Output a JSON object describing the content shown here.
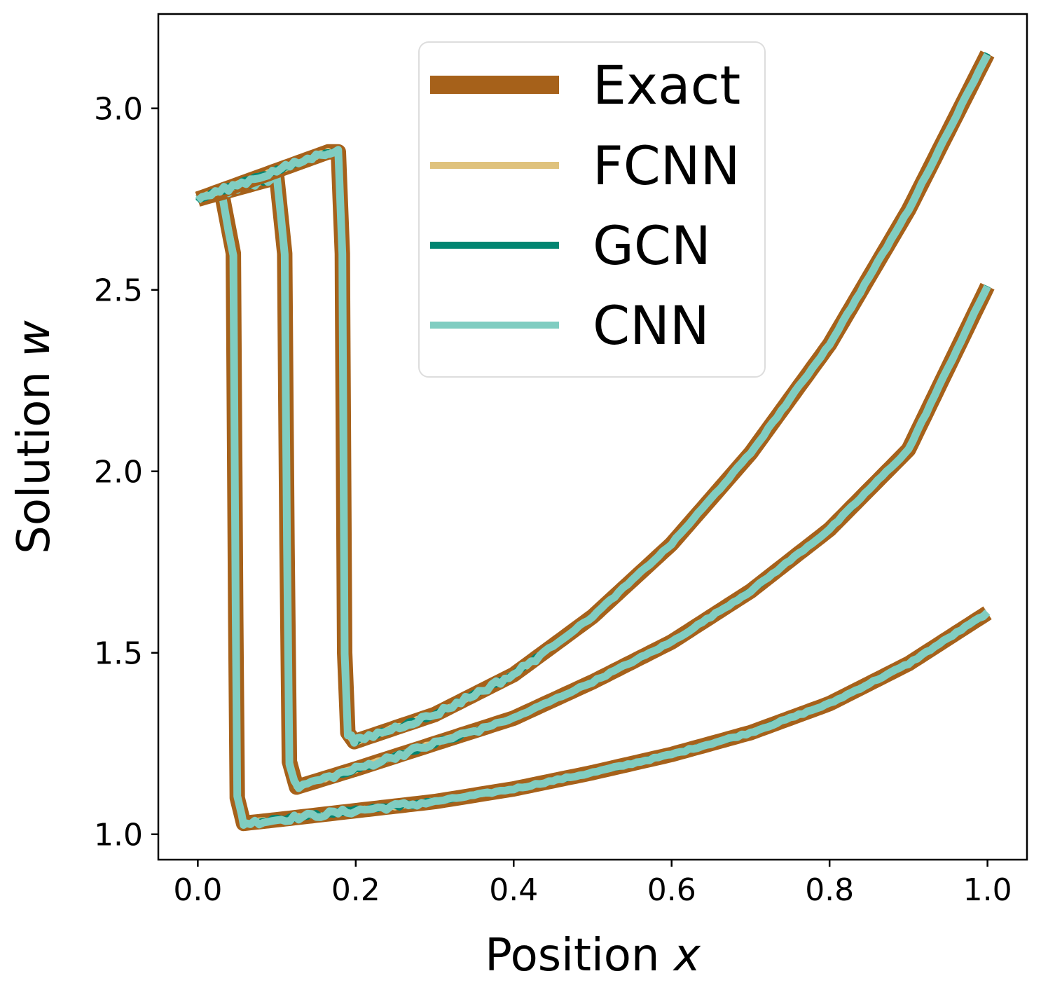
{
  "chart_data": {
    "type": "line",
    "xlabel": {
      "text": "Position ",
      "var": "x"
    },
    "ylabel": {
      "text": "Solution ",
      "var": "w"
    },
    "xlim": [
      -0.05,
      1.05
    ],
    "ylim": [
      0.93,
      3.26
    ],
    "xticks": [
      0.0,
      0.2,
      0.4,
      0.6,
      0.8,
      1.0
    ],
    "xtick_labels": [
      "0.0",
      "0.2",
      "0.4",
      "0.6",
      "0.8",
      "1.0"
    ],
    "yticks": [
      1.0,
      1.5,
      2.0,
      2.5,
      3.0
    ],
    "ytick_labels": [
      "1.0",
      "1.5",
      "2.0",
      "2.5",
      "3.0"
    ],
    "legend_position": "upper center",
    "series": [
      {
        "name": "Exact",
        "color": "#a6611a",
        "width": 22,
        "noise": 0
      },
      {
        "name": "FCNN",
        "color": "#dfc27d",
        "width": 9,
        "noise": 0.004
      },
      {
        "name": "GCN",
        "color": "#018571",
        "width": 9,
        "noise": 0.006
      },
      {
        "name": "CNN",
        "color": "#80cdc1",
        "width": 11,
        "noise": 0.008
      }
    ],
    "curves": [
      {
        "shock_x": 0.045,
        "points": [
          [
            0.0,
            2.75
          ],
          [
            0.03,
            2.77
          ],
          [
            0.045,
            2.6
          ],
          [
            0.048,
            1.6
          ],
          [
            0.05,
            1.1
          ],
          [
            0.058,
            1.03
          ],
          [
            0.1,
            1.04
          ],
          [
            0.2,
            1.065
          ],
          [
            0.3,
            1.09
          ],
          [
            0.4,
            1.125
          ],
          [
            0.5,
            1.17
          ],
          [
            0.6,
            1.22
          ],
          [
            0.7,
            1.28
          ],
          [
            0.8,
            1.36
          ],
          [
            0.9,
            1.47
          ],
          [
            1.0,
            1.61
          ]
        ]
      },
      {
        "shock_x": 0.11,
        "points": [
          [
            0.0,
            2.75
          ],
          [
            0.1,
            2.81
          ],
          [
            0.11,
            2.6
          ],
          [
            0.113,
            1.8
          ],
          [
            0.116,
            1.2
          ],
          [
            0.125,
            1.13
          ],
          [
            0.2,
            1.18
          ],
          [
            0.3,
            1.25
          ],
          [
            0.4,
            1.32
          ],
          [
            0.5,
            1.42
          ],
          [
            0.6,
            1.53
          ],
          [
            0.7,
            1.67
          ],
          [
            0.8,
            1.84
          ],
          [
            0.9,
            2.06
          ],
          [
            1.0,
            2.51
          ]
        ]
      },
      {
        "shock_x": 0.18,
        "points": [
          [
            0.0,
            2.75
          ],
          [
            0.165,
            2.88
          ],
          [
            0.178,
            2.88
          ],
          [
            0.183,
            2.6
          ],
          [
            0.186,
            1.5
          ],
          [
            0.19,
            1.28
          ],
          [
            0.198,
            1.255
          ],
          [
            0.3,
            1.33
          ],
          [
            0.4,
            1.44
          ],
          [
            0.5,
            1.6
          ],
          [
            0.6,
            1.8
          ],
          [
            0.7,
            2.05
          ],
          [
            0.8,
            2.35
          ],
          [
            0.9,
            2.72
          ],
          [
            1.0,
            3.15
          ]
        ]
      }
    ]
  }
}
